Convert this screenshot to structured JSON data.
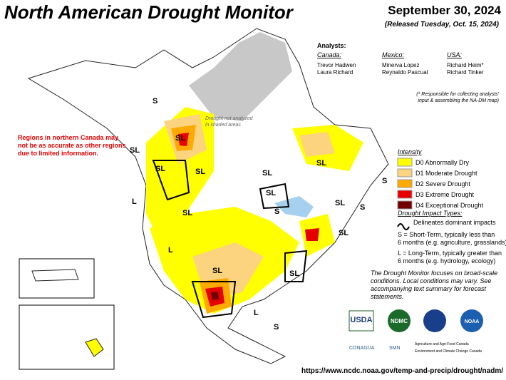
{
  "header": {
    "title": "North American Drought Monitor",
    "date": "September 30, 2024",
    "released": "(Released Tuesday, Oct. 15, 2024)"
  },
  "analysts": {
    "label": "Analysts:",
    "groups": [
      {
        "country": "Canada:",
        "names": [
          "Trevor Hadwen",
          "Laura Richard"
        ]
      },
      {
        "country": "Mexico:",
        "names": [
          "Minerva Lopez",
          "Reynaldo Pascual"
        ]
      },
      {
        "country": "USA:",
        "names": [
          "Richard Heim*",
          "Richard Tinker"
        ]
      }
    ],
    "note": [
      "(* Responsible for collecting analysts'",
      "input & assembling the NA-DM map)"
    ]
  },
  "regions_note": [
    "Regions in northern Canada may",
    "not be as accurate as other regions",
    "due to limited information."
  ],
  "shaded_note": [
    "Drought not analyzed",
    "in shaded areas"
  ],
  "legend": {
    "intensity_title": "Intensity",
    "items": [
      {
        "label": "D0 Abnormally Dry",
        "color": "#ffff00"
      },
      {
        "label": "D1 Moderate Drought",
        "color": "#fcd37f"
      },
      {
        "label": "D2 Severe Drought",
        "color": "#ffaa00"
      },
      {
        "label": "D3 Extreme Drought",
        "color": "#e60000"
      },
      {
        "label": "D4 Exceptional Drought",
        "color": "#730000"
      }
    ],
    "impact_title": "Drought Impact Types:",
    "impact_line": "Delineates dominant impacts",
    "short_term": [
      "S = Short-Term, typically less than",
      "6 months (e.g. agriculture, grasslands)"
    ],
    "long_term": [
      "L = Long-Term, typically greater than",
      "6 months (e.g. hydrology, ecology)"
    ],
    "focus_note": [
      "The Drought Monitor focuses on broad-scale",
      "conditions. Local conditions may vary. See",
      "accompanying text summary for forecast",
      "statements."
    ]
  },
  "map_labels": [
    "S",
    "SL",
    "SL",
    "SL",
    "SL",
    "SL",
    "SL",
    "S",
    "L",
    "SL",
    "S",
    "SL",
    "S",
    "SL",
    "SL",
    "L",
    "SL",
    "SL",
    "L",
    "S"
  ],
  "logos": [
    "USDA",
    "NDMC",
    "NOAA",
    "CONAGUA",
    "SMN",
    "Agriculture and Agri-Food Canada",
    "Environment and Climate Change Canada"
  ],
  "url": "https://www.ncdc.noaa.gov/temp-and-precip/drought/nadm/"
}
